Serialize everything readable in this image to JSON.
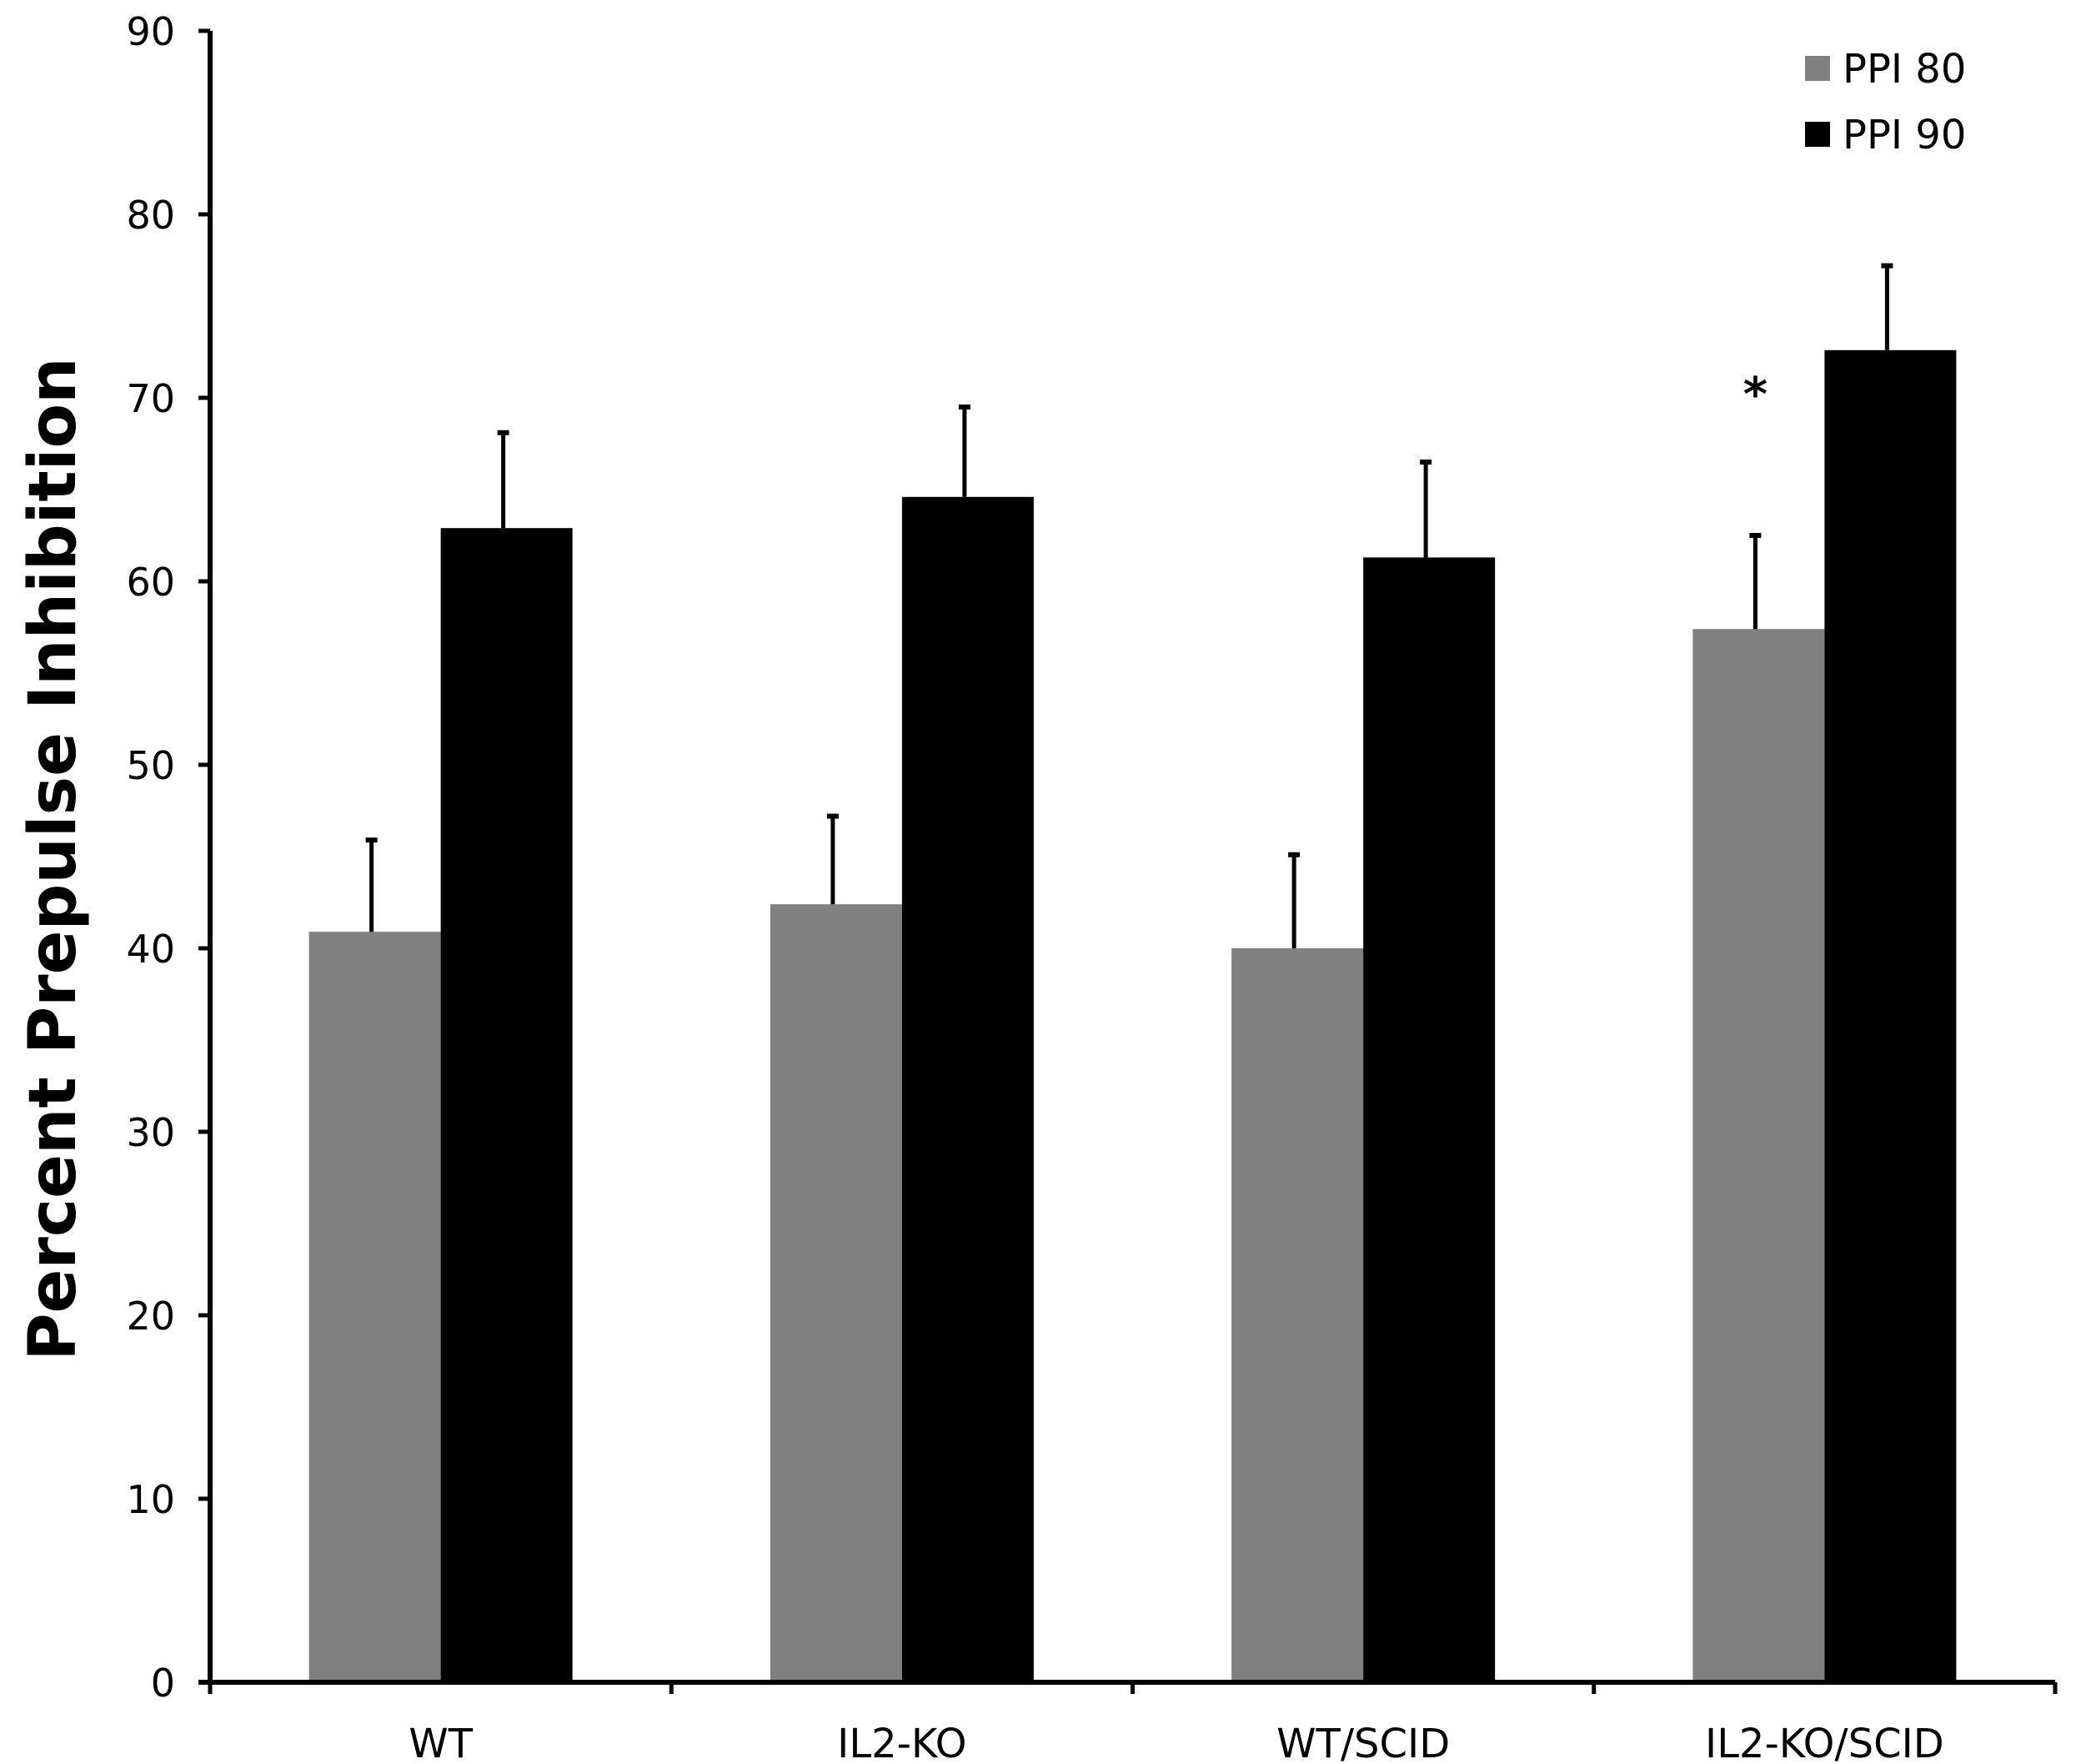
{
  "chart_data": {
    "type": "bar",
    "title": "",
    "xlabel": "",
    "ylabel": "Percent Prepulse Inhibition",
    "ylim": [
      0,
      90
    ],
    "yticks": [
      0,
      10,
      20,
      30,
      40,
      50,
      60,
      70,
      80,
      90
    ],
    "categories": [
      "WT",
      "IL2-KO",
      "WT/SCID",
      "IL2-KO/SCID"
    ],
    "series": [
      {
        "name": "PPI 80",
        "color": "#808080",
        "values": [
          40.9,
          42.4,
          40.0,
          57.4
        ],
        "errors": [
          5.0,
          4.8,
          5.1,
          5.1
        ]
      },
      {
        "name": "PPI 90",
        "color": "#000000",
        "values": [
          62.9,
          64.6,
          61.3,
          72.6
        ],
        "errors": [
          5.2,
          4.9,
          5.2,
          4.6
        ]
      }
    ],
    "annotations": [
      {
        "text": "*",
        "category": "IL2-KO/SCID",
        "series": "PPI 80"
      }
    ],
    "legend": {
      "position": "top-right"
    },
    "grid": false
  }
}
